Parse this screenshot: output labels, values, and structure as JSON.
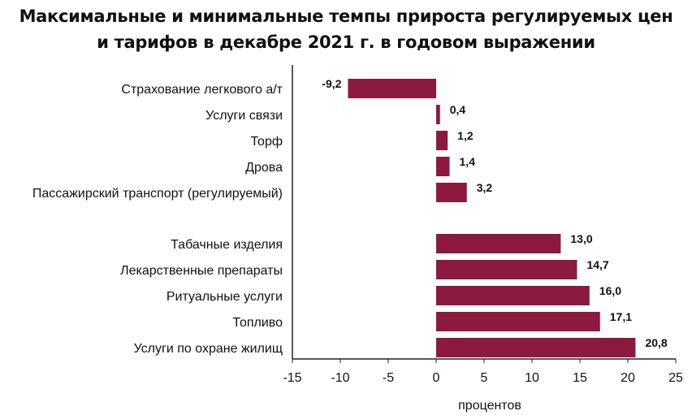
{
  "chart_data": {
    "type": "bar",
    "orientation": "horizontal",
    "title": [
      "Максимальные и минимальные темпы прироста регулируемых цен",
      "и тарифов в декабре 2021 г. в годовом выражении"
    ],
    "xlabel": "процентов",
    "ylabel": "",
    "xlim": [
      -15,
      25
    ],
    "xticks": [
      -15,
      -10,
      -5,
      0,
      5,
      10,
      15,
      20,
      25
    ],
    "grid": false,
    "legend": "none",
    "bar_color": "#8b1a3e",
    "groups": [
      {
        "categories": [
          "Страхование легкового а/т",
          "Услуги связи",
          "Торф",
          "Дрова",
          "Пассажирский транспорт (регулируемый)"
        ],
        "values": [
          -9.2,
          0.4,
          1.2,
          1.4,
          3.2
        ],
        "labels": [
          "-9,2",
          "0,4",
          "1,2",
          "1,4",
          "3,2"
        ]
      },
      {
        "categories": [
          "Табачные изделия",
          "Лекарственные препараты",
          "Ритуальные услуги",
          "Топливо",
          "Услуги по охране жилищ"
        ],
        "values": [
          13.0,
          14.7,
          16.0,
          17.1,
          20.8
        ],
        "labels": [
          "13,0",
          "14,7",
          "16,0",
          "17,1",
          "20,8"
        ]
      }
    ]
  }
}
